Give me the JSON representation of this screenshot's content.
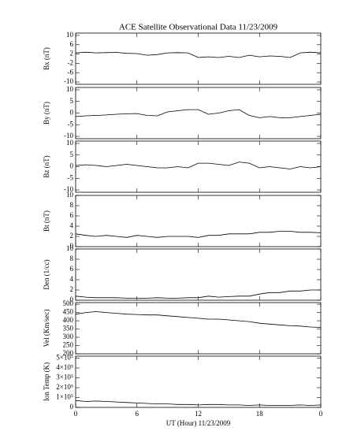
{
  "chart_data": [
    {
      "type": "line",
      "title": "ACE Satellite Observational Data   11/23/2009",
      "ylabel": "Bx (nT)",
      "color": "#000000",
      "x": [
        0,
        1,
        2,
        3,
        4,
        5,
        6,
        7,
        8,
        9,
        10,
        11,
        12,
        13,
        14,
        15,
        16,
        17,
        18,
        19,
        20,
        21,
        22,
        23,
        24
      ],
      "xlim": [
        0,
        24
      ],
      "values": [
        2.5,
        2.8,
        2.5,
        2.6,
        2.7,
        2.3,
        2.2,
        1.5,
        1.8,
        2.5,
        2.6,
        2.5,
        0.5,
        0.8,
        0.5,
        1.0,
        0.5,
        1.5,
        0.8,
        1.2,
        1.0,
        0.5,
        2.5,
        2.8,
        2.5
      ],
      "ylim": [
        -11,
        11
      ],
      "yticks": [
        -10,
        -6,
        -2,
        2,
        6,
        10
      ]
    },
    {
      "type": "line",
      "ylabel": "By (nT)",
      "color": "#000000",
      "x": [
        0,
        1,
        2,
        3,
        4,
        5,
        6,
        7,
        8,
        9,
        10,
        11,
        12,
        13,
        14,
        15,
        16,
        17,
        18,
        19,
        20,
        21,
        22,
        23,
        24
      ],
      "xlim": [
        0,
        24
      ],
      "values": [
        -1.5,
        -1.2,
        -1,
        -0.8,
        -0.5,
        -0.3,
        -0.2,
        -1,
        -1.2,
        0.5,
        1,
        1.5,
        1.5,
        -0.5,
        0,
        1,
        1.5,
        -1,
        -2,
        -1.5,
        -2,
        -2,
        -1.5,
        -1,
        -0.5
      ],
      "ylim": [
        -11,
        11
      ],
      "yticks": [
        -10,
        -5,
        0,
        5,
        10
      ]
    },
    {
      "type": "line",
      "ylabel": "Bz (nT)",
      "color": "#000000",
      "x": [
        0,
        1,
        2,
        3,
        4,
        5,
        6,
        7,
        8,
        9,
        10,
        11,
        12,
        13,
        14,
        15,
        16,
        17,
        18,
        19,
        20,
        21,
        22,
        23,
        24
      ],
      "xlim": [
        0,
        24
      ],
      "values": [
        0.5,
        0.8,
        0.5,
        0,
        0.5,
        1,
        0.5,
        0,
        -0.5,
        -0.5,
        0,
        -0.5,
        1.5,
        1.5,
        1,
        0.5,
        2,
        1.5,
        -0.5,
        0,
        -0.5,
        -1,
        0,
        -0.5,
        0
      ],
      "ylim": [
        -11,
        11
      ],
      "yticks": [
        -10,
        -5,
        0,
        5,
        10
      ]
    },
    {
      "type": "line",
      "ylabel": "Bt (nT)",
      "color": "#000000",
      "x": [
        0,
        1,
        2,
        3,
        4,
        5,
        6,
        7,
        8,
        9,
        10,
        11,
        12,
        13,
        14,
        15,
        16,
        17,
        18,
        19,
        20,
        21,
        22,
        23,
        24
      ],
      "xlim": [
        0,
        24
      ],
      "values": [
        2.5,
        2.2,
        2,
        2.2,
        2,
        1.8,
        2.2,
        2,
        1.8,
        2,
        2,
        2,
        1.8,
        2.2,
        2.2,
        2.5,
        2.5,
        2.5,
        2.8,
        2.8,
        3,
        3,
        2.8,
        2.8,
        2.7
      ],
      "ylim": [
        0,
        10
      ],
      "yticks": [
        0,
        2,
        4,
        6,
        8,
        10
      ]
    },
    {
      "type": "line",
      "ylabel": "Den (1/cc)",
      "color": "#000000",
      "x": [
        0,
        1,
        2,
        3,
        4,
        5,
        6,
        7,
        8,
        9,
        10,
        11,
        12,
        13,
        14,
        15,
        16,
        17,
        18,
        19,
        20,
        21,
        22,
        23,
        24
      ],
      "xlim": [
        0,
        24
      ],
      "values": [
        0.8,
        0.6,
        0.5,
        0.5,
        0.5,
        0.4,
        0.4,
        0.4,
        0.5,
        0.4,
        0.4,
        0.5,
        0.5,
        0.8,
        0.6,
        0.7,
        0.8,
        0.8,
        1.2,
        1.5,
        1.5,
        1.8,
        1.8,
        2,
        2
      ],
      "ylim": [
        0,
        10
      ],
      "yticks": [
        0,
        2,
        4,
        6,
        8,
        10
      ]
    },
    {
      "type": "line",
      "ylabel": "Vel (Km/sec)",
      "color": "#000000",
      "x": [
        0,
        1,
        2,
        3,
        4,
        5,
        6,
        7,
        8,
        9,
        10,
        11,
        12,
        13,
        14,
        15,
        16,
        17,
        18,
        19,
        20,
        21,
        22,
        23,
        24
      ],
      "xlim": [
        0,
        24
      ],
      "values": [
        440,
        450,
        455,
        450,
        445,
        440,
        438,
        435,
        435,
        430,
        425,
        420,
        415,
        410,
        410,
        405,
        400,
        395,
        385,
        380,
        375,
        370,
        368,
        362,
        360
      ],
      "ylim": [
        200,
        510
      ],
      "yticks": [
        200,
        250,
        300,
        350,
        400,
        450,
        500
      ]
    },
    {
      "type": "line",
      "ylabel": "Ion Temp (K)",
      "xlabel": "UT (Hour)  11/23/2009",
      "color": "#000000",
      "x": [
        0,
        1,
        2,
        3,
        4,
        5,
        6,
        7,
        8,
        9,
        10,
        11,
        12,
        13,
        14,
        15,
        16,
        17,
        18,
        19,
        20,
        21,
        22,
        23,
        24
      ],
      "xlim": [
        0,
        24
      ],
      "xticks": [
        0,
        6,
        12,
        18,
        {
          "value": 24,
          "label": "0"
        }
      ],
      "values": [
        70000,
        60000,
        65000,
        60000,
        55000,
        50000,
        45000,
        40000,
        35000,
        35000,
        30000,
        30000,
        25000,
        30000,
        30000,
        25000,
        25000,
        20000,
        25000,
        20000,
        20000,
        20000,
        25000,
        20000,
        25000
      ],
      "ylim": [
        0,
        520000
      ],
      "yticks": [
        0,
        {
          "value": 100000,
          "label": "1×10⁵"
        },
        {
          "value": 200000,
          "label": "2×10⁵"
        },
        {
          "value": 300000,
          "label": "3×10⁵"
        },
        {
          "value": 400000,
          "label": "4×10⁵"
        },
        {
          "value": 500000,
          "label": "5×10⁵"
        }
      ]
    }
  ]
}
